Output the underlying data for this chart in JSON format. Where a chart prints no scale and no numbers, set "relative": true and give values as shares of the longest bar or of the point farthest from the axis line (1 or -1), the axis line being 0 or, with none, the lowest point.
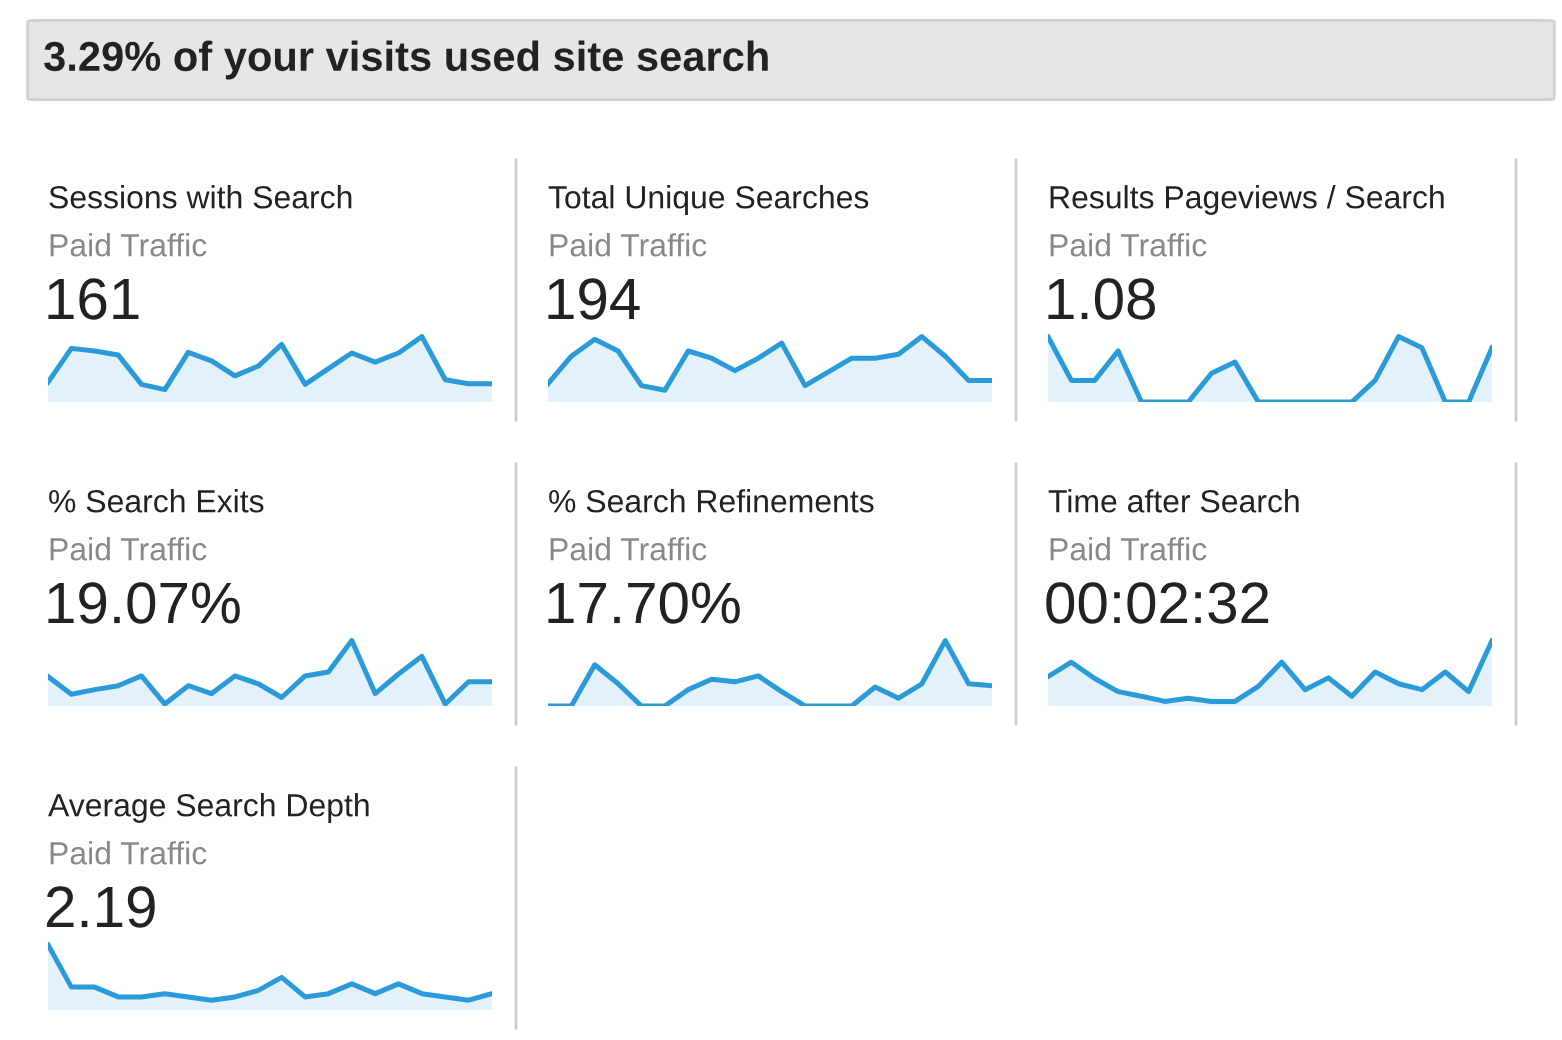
{
  "chart_data": [
    {
      "type": "other",
      "title": "3.29% of your visits used site search"
    },
    {
      "type": "area",
      "relative": true,
      "title": "Sessions with Search",
      "subtitle": "Paid Traffic",
      "annotations": [
        "161"
      ],
      "categories": [
        null,
        null,
        null,
        null,
        null,
        null,
        null,
        null,
        null,
        null,
        null,
        null,
        null,
        null,
        null,
        null,
        null,
        null,
        null,
        null
      ],
      "series": [
        {
          "color": "#2a9bd8",
          "values": [
            0.3,
            0.82,
            0.78,
            0.72,
            0.27,
            0.19,
            0.76,
            0.63,
            0.4,
            0.55,
            0.88,
            0.27,
            0.51,
            0.75,
            0.61,
            0.75,
            1,
            0.34,
            0.28,
            0.28
          ]
        }
      ]
    },
    {
      "type": "area",
      "relative": true,
      "title": "Total Unique Searches",
      "subtitle": "Paid Traffic",
      "annotations": [
        "194"
      ],
      "categories": [
        null,
        null,
        null,
        null,
        null,
        null,
        null,
        null,
        null,
        null,
        null,
        null,
        null,
        null,
        null,
        null,
        null,
        null,
        null,
        null
      ],
      "series": [
        {
          "color": "#2a9bd8",
          "values": [
            0.28,
            0.7,
            0.96,
            0.78,
            0.25,
            0.18,
            0.78,
            0.67,
            0.48,
            0.67,
            0.9,
            0.25,
            0.46,
            0.67,
            0.67,
            0.73,
            1,
            0.7,
            0.33,
            0.33
          ]
        }
      ]
    },
    {
      "type": "area",
      "relative": true,
      "title": "Results Pageviews / Search",
      "subtitle": "Paid Traffic",
      "annotations": [
        "1.08"
      ],
      "categories": [
        null,
        null,
        null,
        null,
        null,
        null,
        null,
        null,
        null,
        null,
        null,
        null,
        null,
        null,
        null,
        null,
        null,
        null,
        null,
        null
      ],
      "series": [
        {
          "color": "#2a9bd8",
          "values": [
            1,
            0.33,
            0.33,
            0.78,
            0,
            0,
            0,
            0.44,
            0.61,
            0,
            0,
            0,
            0,
            0,
            0.33,
            1,
            0.83,
            0,
            0,
            0.83
          ]
        }
      ]
    },
    {
      "type": "area",
      "relative": true,
      "title": "% Search Exits",
      "subtitle": "Paid Traffic",
      "annotations": [
        "19.07%"
      ],
      "categories": [
        null,
        null,
        null,
        null,
        null,
        null,
        null,
        null,
        null,
        null,
        null,
        null,
        null,
        null,
        null,
        null,
        null,
        null,
        null,
        null
      ],
      "series": [
        {
          "color": "#2a9bd8",
          "values": [
            0.45,
            0.18,
            0.25,
            0.31,
            0.46,
            0.03,
            0.31,
            0.19,
            0.46,
            0.34,
            0.13,
            0.46,
            0.52,
            1,
            0.19,
            0.49,
            0.76,
            0.03,
            0.37,
            0.37
          ]
        }
      ]
    },
    {
      "type": "area",
      "relative": true,
      "title": "% Search Refinements",
      "subtitle": "Paid Traffic",
      "annotations": [
        "17.70%"
      ],
      "categories": [
        null,
        null,
        null,
        null,
        null,
        null,
        null,
        null,
        null,
        null,
        null,
        null,
        null,
        null,
        null,
        null,
        null,
        null,
        null,
        null
      ],
      "series": [
        {
          "color": "#2a9bd8",
          "values": [
            0,
            0,
            0.63,
            0.34,
            0,
            0,
            0.25,
            0.41,
            0.37,
            0.46,
            0.22,
            0,
            0,
            0,
            0.29,
            0.12,
            0.34,
            1,
            0.34,
            0.31
          ]
        }
      ]
    },
    {
      "type": "area",
      "relative": true,
      "title": "Time after Search",
      "subtitle": "Paid Traffic",
      "annotations": [
        "00:02:32"
      ],
      "categories": [
        null,
        null,
        null,
        null,
        null,
        null,
        null,
        null,
        null,
        null,
        null,
        null,
        null,
        null,
        null,
        null,
        null,
        null,
        null,
        null
      ],
      "series": [
        {
          "color": "#2a9bd8",
          "values": [
            0.45,
            0.67,
            0.42,
            0.22,
            0.15,
            0.07,
            0.12,
            0.07,
            0.07,
            0.3,
            0.67,
            0.25,
            0.43,
            0.15,
            0.52,
            0.34,
            0.25,
            0.52,
            0.22,
            1
          ]
        }
      ]
    },
    {
      "type": "area",
      "relative": true,
      "title": "Average Search Depth",
      "subtitle": "Paid Traffic",
      "annotations": [
        "2.19"
      ],
      "categories": [
        null,
        null,
        null,
        null,
        null,
        null,
        null,
        null,
        null,
        null,
        null,
        null,
        null,
        null,
        null,
        null,
        null,
        null,
        null,
        null
      ],
      "series": [
        {
          "color": "#2a9bd8",
          "values": [
            1,
            0.35,
            0.35,
            0.2,
            0.2,
            0.25,
            0.2,
            0.15,
            0.2,
            0.3,
            0.5,
            0.2,
            0.25,
            0.4,
            0.25,
            0.4,
            0.25,
            0.2,
            0.15,
            0.25
          ]
        }
      ]
    }
  ]
}
